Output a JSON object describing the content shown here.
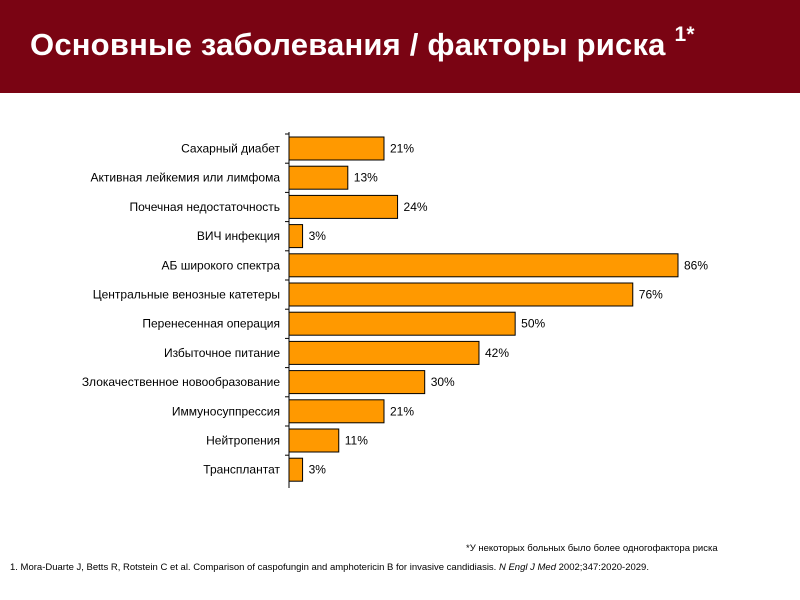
{
  "header": {
    "title": "Основные заболевания / факторы риска",
    "superscript": "1*"
  },
  "chart_data": {
    "type": "bar",
    "orientation": "horizontal",
    "title": "Основные заболевания / факторы риска",
    "categories": [
      "Сахарный диабет",
      "Активная лейкемия или лимфома",
      "Почечная недостаточность",
      "ВИЧ инфекция",
      "АБ широкого спектра",
      "Центральные венозные катетеры",
      "Перенесенная операция",
      "Избыточное питание",
      "Злокачественное новообразование",
      "Иммуносуппрессия",
      "Нейтропения",
      "Трансплантат"
    ],
    "values": [
      21,
      13,
      24,
      3,
      86,
      76,
      50,
      42,
      30,
      21,
      11,
      3
    ],
    "value_labels": [
      "21%",
      "13%",
      "24%",
      "3%",
      "86%",
      "76%",
      "50%",
      "42%",
      "30%",
      "21%",
      "11%",
      "3%"
    ],
    "xlim": [
      0,
      86
    ],
    "unit": "%",
    "xlabel": "",
    "ylabel": "",
    "bar_color": "#ff9900",
    "bar_edge_color": "#000000"
  },
  "footnote": "*У некоторых больных было более одногофактора риска",
  "reference": {
    "prefix": "1. Mora-Duarte J, Betts R, Rotstein C et al. Comparison of caspofungin and amphotericin B for invasive candidiasis.",
    "journal": "N Engl J Med",
    "suffix": "2002;347:2020-2029."
  },
  "colors": {
    "header_bg": "#7a0413",
    "title_text": "#ffffff"
  }
}
